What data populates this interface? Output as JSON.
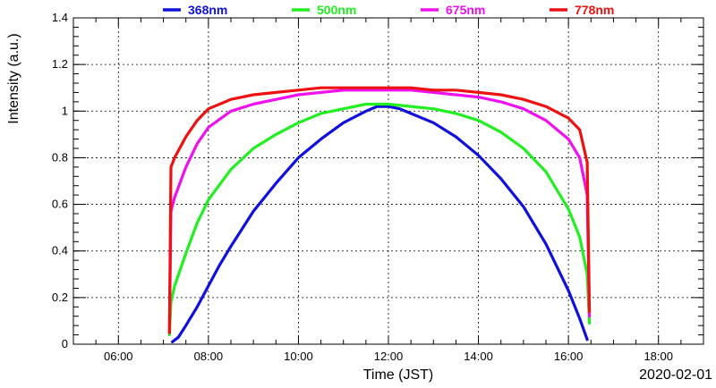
{
  "chart_data": {
    "type": "line",
    "title": "",
    "xlabel": "Time (JST)",
    "ylabel": "Intensity (a.u.)",
    "date_label": "2020-02-01",
    "xlim": [
      "05:00",
      "19:00"
    ],
    "ylim": [
      0,
      1.4
    ],
    "x_ticks": [
      "06:00",
      "08:00",
      "10:00",
      "12:00",
      "14:00",
      "16:00",
      "18:00"
    ],
    "y_ticks": [
      "0",
      "0.2",
      "0.4",
      "0.6",
      "0.8",
      "1",
      "1.2",
      "1.4"
    ],
    "grid": true,
    "legend_position": "top",
    "series": [
      {
        "name": "368nm",
        "color": "#1010dd",
        "x": [
          "07:12",
          "07:20",
          "07:30",
          "07:45",
          "08:00",
          "08:15",
          "08:30",
          "09:00",
          "09:30",
          "10:00",
          "10:30",
          "11:00",
          "11:30",
          "11:45",
          "12:00",
          "12:15",
          "12:30",
          "13:00",
          "13:30",
          "14:00",
          "14:30",
          "15:00",
          "15:30",
          "16:00",
          "16:15",
          "16:25"
        ],
        "values": [
          0.01,
          0.03,
          0.08,
          0.16,
          0.25,
          0.34,
          0.42,
          0.57,
          0.69,
          0.8,
          0.88,
          0.95,
          1.0,
          1.02,
          1.02,
          1.01,
          0.99,
          0.95,
          0.89,
          0.81,
          0.71,
          0.59,
          0.43,
          0.23,
          0.11,
          0.02
        ]
      },
      {
        "name": "500nm",
        "color": "#22ee22",
        "x": [
          "07:08",
          "07:10",
          "07:15",
          "07:30",
          "07:45",
          "08:00",
          "08:30",
          "09:00",
          "09:30",
          "10:00",
          "10:30",
          "11:00",
          "11:30",
          "12:00",
          "12:30",
          "13:00",
          "13:30",
          "14:00",
          "14:30",
          "15:00",
          "15:30",
          "16:00",
          "16:15",
          "16:25",
          "16:28"
        ],
        "values": [
          0.04,
          0.18,
          0.25,
          0.39,
          0.52,
          0.62,
          0.75,
          0.84,
          0.9,
          0.95,
          0.99,
          1.01,
          1.03,
          1.03,
          1.02,
          1.01,
          0.99,
          0.96,
          0.91,
          0.84,
          0.74,
          0.58,
          0.46,
          0.3,
          0.09
        ]
      },
      {
        "name": "675nm",
        "color": "#ee11ee",
        "x": [
          "07:08",
          "07:10",
          "07:15",
          "07:30",
          "07:45",
          "08:00",
          "08:30",
          "09:00",
          "09:30",
          "10:00",
          "10:30",
          "11:00",
          "11:30",
          "12:00",
          "12:30",
          "13:00",
          "13:30",
          "14:00",
          "14:30",
          "15:00",
          "15:30",
          "16:00",
          "16:15",
          "16:25",
          "16:28"
        ],
        "values": [
          0.05,
          0.57,
          0.63,
          0.76,
          0.86,
          0.93,
          1.0,
          1.03,
          1.05,
          1.07,
          1.08,
          1.09,
          1.09,
          1.09,
          1.09,
          1.08,
          1.07,
          1.06,
          1.04,
          1.01,
          0.96,
          0.88,
          0.8,
          0.64,
          0.12
        ]
      },
      {
        "name": "778nm",
        "color": "#ee1111",
        "x": [
          "07:08",
          "07:10",
          "07:15",
          "07:30",
          "07:45",
          "08:00",
          "08:30",
          "09:00",
          "09:30",
          "10:00",
          "10:30",
          "11:00",
          "11:30",
          "12:00",
          "12:30",
          "13:00",
          "13:30",
          "14:00",
          "14:30",
          "15:00",
          "15:30",
          "16:00",
          "16:15",
          "16:25",
          "16:28"
        ],
        "values": [
          0.05,
          0.76,
          0.8,
          0.89,
          0.96,
          1.01,
          1.05,
          1.07,
          1.08,
          1.09,
          1.1,
          1.1,
          1.1,
          1.1,
          1.1,
          1.09,
          1.09,
          1.08,
          1.07,
          1.05,
          1.02,
          0.97,
          0.92,
          0.78,
          0.14
        ]
      }
    ]
  }
}
